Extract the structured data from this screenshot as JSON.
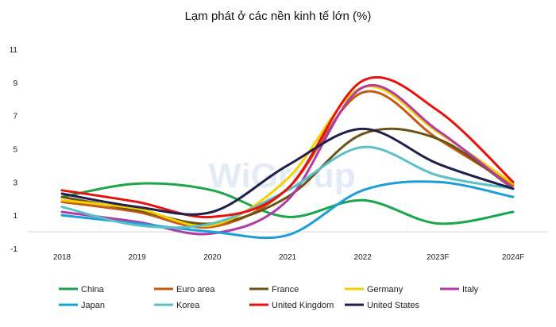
{
  "chart_data": {
    "type": "line",
    "title": "Lạm phát ở các nền kinh tế lớn (%)",
    "xlabel": "",
    "ylabel": "",
    "categories": [
      "2018",
      "2019",
      "2020",
      "2021",
      "2022",
      "2023F",
      "2024F"
    ],
    "yticks": [
      "11",
      "9",
      "7",
      "5",
      "3",
      "1",
      "-1"
    ],
    "ylim": [
      -1,
      11
    ],
    "grid": false,
    "legend_position": "bottom",
    "watermark": "WiGroup",
    "series": [
      {
        "name": "China",
        "color": "#1aa64b",
        "values": [
          2.1,
          2.9,
          2.5,
          0.9,
          1.9,
          0.5,
          1.2
        ]
      },
      {
        "name": "Euro area",
        "color": "#c55a11",
        "values": [
          1.8,
          1.2,
          0.3,
          2.6,
          8.4,
          5.6,
          2.8
        ]
      },
      {
        "name": "France",
        "color": "#6b5315",
        "values": [
          2.1,
          1.3,
          0.5,
          2.1,
          5.9,
          5.6,
          2.6
        ]
      },
      {
        "name": "Germany",
        "color": "#f5d000",
        "values": [
          1.9,
          1.4,
          0.4,
          3.2,
          8.7,
          6.0,
          2.9
        ]
      },
      {
        "name": "Italy",
        "color": "#b23ca6",
        "values": [
          1.2,
          0.6,
          -0.1,
          1.9,
          8.7,
          6.1,
          2.6
        ]
      },
      {
        "name": "Japan",
        "color": "#1b9fd8",
        "values": [
          1.0,
          0.5,
          0.0,
          -0.2,
          2.5,
          3.0,
          2.1
        ]
      },
      {
        "name": "Korea",
        "color": "#5cc0c8",
        "values": [
          1.5,
          0.4,
          0.5,
          2.5,
          5.1,
          3.4,
          2.6
        ]
      },
      {
        "name": "United Kingdom",
        "color": "#e8120c",
        "values": [
          2.5,
          1.8,
          0.9,
          2.6,
          9.1,
          7.3,
          3.0
        ]
      },
      {
        "name": "United States",
        "color": "#1f1f4d",
        "values": [
          2.3,
          1.5,
          1.2,
          4.0,
          6.2,
          4.1,
          2.6
        ]
      }
    ]
  }
}
